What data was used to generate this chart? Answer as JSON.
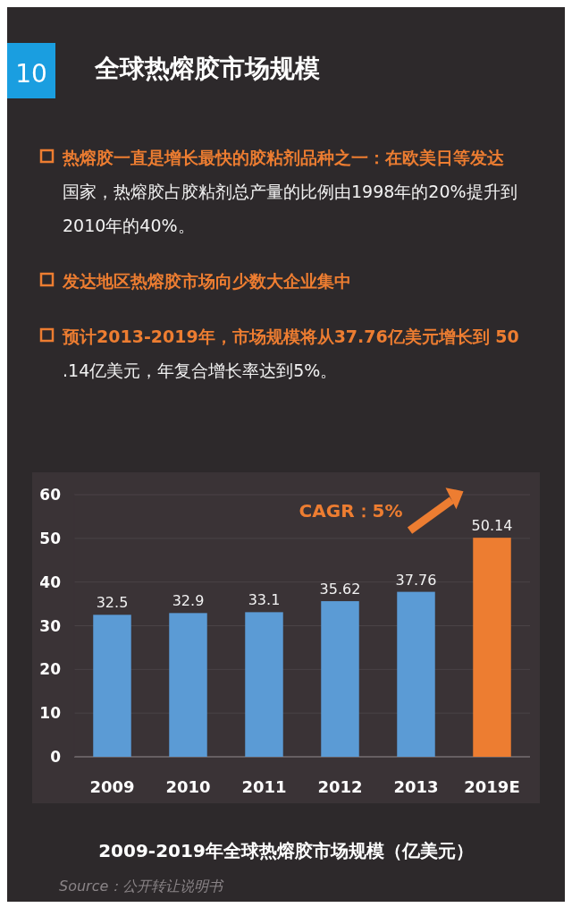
{
  "chart_data": {
    "type": "bar",
    "title": "全球热熔胶市场规模",
    "subtitle": "2009-2019年全球热熔胶市场规模（亿美元）",
    "categories": [
      "2009",
      "2010",
      "2011",
      "2012",
      "2013",
      "2019E"
    ],
    "values": [
      32.5,
      32.9,
      33.1,
      35.62,
      37.76,
      50.14
    ],
    "colors": [
      "#5b9bd5",
      "#5b9bd5",
      "#5b9bd5",
      "#5b9bd5",
      "#5b9bd5",
      "#ed7d31"
    ],
    "ylim": [
      0,
      60
    ],
    "yticks": [
      0,
      10,
      20,
      30,
      40,
      50,
      60
    ],
    "grid": "y",
    "data_labels": true,
    "annotations": [
      "10",
      "热熔胶一直是增长最快的胶粘剂品种之一：在欧美日等发达国家，热熔胶占胶粘剂总产量的比例由1998年的20%提升到2010年的40%。",
      "发达地区热熔胶市场向少数大企业集中",
      "预计2013-2019年，市场规模将从37.76亿美元增长到 50.14亿美元，年复合增长率达到5%。",
      "CAGR：5%",
      "Source：公开转让说明书"
    ]
  }
}
